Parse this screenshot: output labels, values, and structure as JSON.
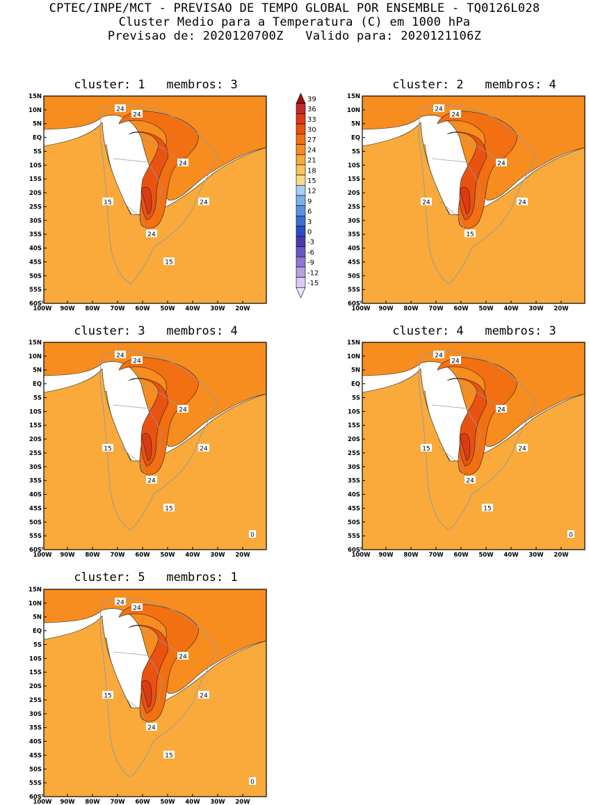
{
  "header": {
    "line1": "CPTEC/INPE/MCT - PREVISAO DE TEMPO GLOBAL POR ENSEMBLE - TQ0126L028",
    "line2": "Cluster Medio para a Temperatura (C) em 1000 hPa",
    "line3": "Previsao de: 2020120700Z   Valido para: 2020121106Z"
  },
  "axes": {
    "lat_labels": [
      "15N",
      "10N",
      "5N",
      "EQ",
      "5S",
      "10S",
      "15S",
      "20S",
      "25S",
      "30S",
      "35S",
      "40S",
      "45S",
      "50S",
      "55S",
      "60S"
    ],
    "lon_labels": [
      "100W",
      "90W",
      "80W",
      "70W",
      "60W",
      "50W",
      "40W",
      "30W",
      "20W"
    ]
  },
  "colorbar": {
    "labels": [
      "39",
      "36",
      "33",
      "30",
      "27",
      "24",
      "21",
      "18",
      "15",
      "12",
      "9",
      "6",
      "3",
      "0",
      "-3",
      "-6",
      "-9",
      "-12",
      "-15"
    ],
    "colors": [
      "#a01010",
      "#c42a2a",
      "#dc3a14",
      "#ea5212",
      "#f26f12",
      "#f78c1f",
      "#f9aa3a",
      "#fac35b",
      "#fcda84",
      "#a9cdf2",
      "#7ab0ea",
      "#5a92e2",
      "#3c6fd6",
      "#2e4cc6",
      "#4b3aaa",
      "#6e55c4",
      "#8e78d4",
      "#b3a3e2",
      "#d8ccf2",
      "#ece6fb"
    ]
  },
  "panels": [
    {
      "title": "cluster: 1   membros: 3",
      "labels": [
        "24",
        "24",
        "24",
        "24",
        "15",
        "24",
        "15"
      ]
    },
    {
      "title": "cluster: 2   membros: 4",
      "labels": [
        "24",
        "24",
        "24",
        "24",
        "24",
        "15"
      ]
    },
    {
      "title": "cluster: 3   membros: 4",
      "labels": [
        "24",
        "24",
        "24",
        "24",
        "15",
        "24",
        "15",
        "0"
      ]
    },
    {
      "title": "cluster: 4   membros: 3",
      "labels": [
        "24",
        "24",
        "24",
        "24",
        "15",
        "24",
        "15",
        "0"
      ]
    },
    {
      "title": "cluster: 5   membros: 1",
      "labels": [
        "24",
        "24",
        "24",
        "24",
        "15",
        "24",
        "15",
        "0"
      ]
    }
  ]
}
